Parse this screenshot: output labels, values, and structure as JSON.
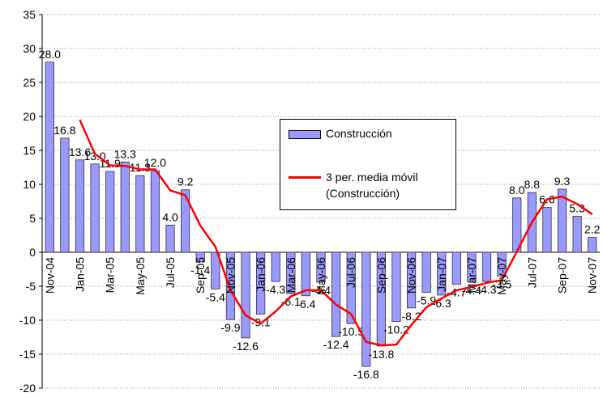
{
  "chart_data": {
    "type": "bar",
    "categories": [
      "Nov-04",
      null,
      "Jan-05",
      null,
      "Mar-05",
      null,
      "May-05",
      null,
      "Jul-05",
      null,
      "Sep-05",
      null,
      "Nov-05",
      null,
      "Jan-06",
      null,
      "Mar-06",
      null,
      "May-06",
      null,
      "Jul-06",
      null,
      "Sep-06",
      null,
      "Nov-06",
      null,
      "Jan-07",
      null,
      "Mar-07",
      null,
      "May-07",
      null,
      "Jul-07",
      null,
      "Sep-07",
      null,
      "Nov-07"
    ],
    "series": [
      {
        "name": "Construcción",
        "type": "bar",
        "color": "#9999ff",
        "values": [
          28.0,
          16.8,
          13.6,
          13.0,
          11.9,
          13.3,
          11.3,
          12.0,
          4.0,
          9.2,
          -1.4,
          -5.4,
          -9.9,
          -12.6,
          -9.1,
          -4.3,
          -6.1,
          -6.4,
          -4.4,
          -12.4,
          -10.5,
          -16.8,
          -13.8,
          -10.2,
          -8.2,
          -5.9,
          -6.3,
          -4.7,
          -4.4,
          -4.3,
          -3.5,
          8.0,
          8.8,
          6.6,
          9.3,
          5.3,
          2.2
        ],
        "value_labels": [
          "28.0",
          "16.8",
          "13.6",
          "13.0",
          "11.9",
          "13.3",
          "11.3",
          "12.0",
          "4.0",
          "9.2",
          "-1.4",
          "-5.4",
          "-9.9",
          "-12.6",
          "-9.1",
          "-4.3",
          "-6.1",
          "-6.4",
          "-4.4",
          "-12.4",
          "-10.5",
          "-16.8",
          "-13.8",
          "-10.2",
          "-8.2",
          "-5.9",
          "-6.3",
          "-4.7",
          "-4.4",
          "-4.3",
          "-3.5",
          "8.0",
          "8.8",
          "6.6",
          "9.3",
          "5.3",
          "2.2"
        ]
      },
      {
        "name": "3 per. media móvil (Construcción)",
        "type": "line",
        "color": "#ff0000",
        "values": [
          null,
          null,
          19.5,
          14.5,
          12.8,
          12.7,
          12.2,
          12.2,
          9.1,
          8.4,
          3.9,
          0.8,
          -5.6,
          -9.3,
          -10.5,
          -8.7,
          -6.5,
          -5.6,
          -5.6,
          -7.7,
          -9.1,
          -13.2,
          -13.7,
          -13.6,
          -10.7,
          -8.1,
          -6.8,
          -5.6,
          -5.1,
          -4.5,
          -4.1,
          0.1,
          4.4,
          7.8,
          8.2,
          7.1,
          5.6
        ]
      }
    ],
    "ylim": [
      -20,
      35
    ],
    "yticks": [
      -20,
      -15,
      -10,
      -5,
      0,
      5,
      10,
      15,
      20,
      25,
      30,
      35
    ],
    "grid": true
  }
}
